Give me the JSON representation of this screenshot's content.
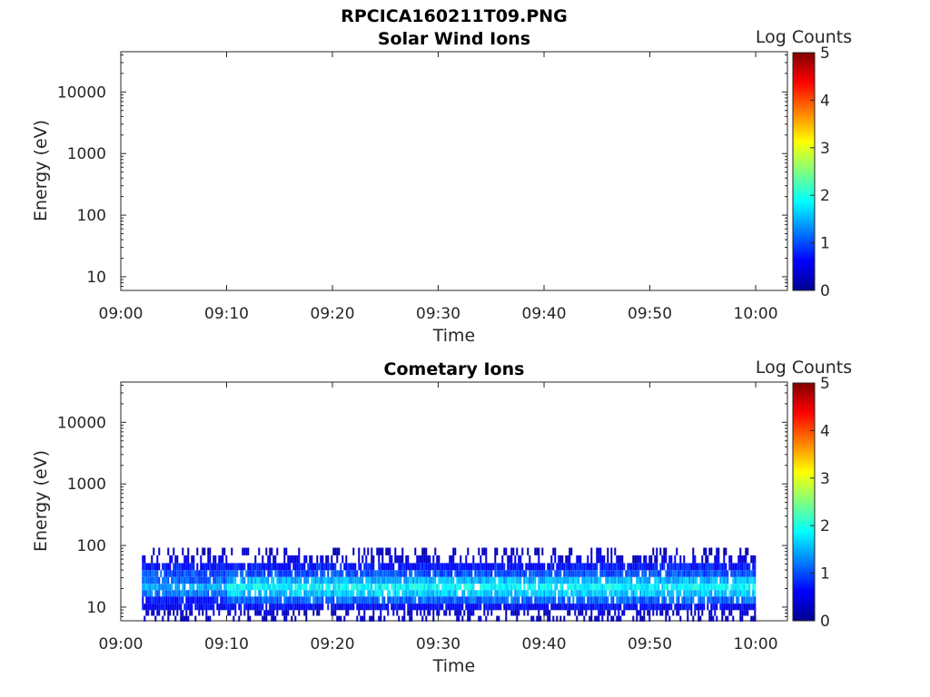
{
  "figure_title": "RPCICA160211T09.PNG",
  "chart_data": [
    {
      "type": "heatmap",
      "title": "Solar Wind Ions",
      "xlabel": "Time",
      "ylabel": "Energy (eV)",
      "xticks": [
        "09:00",
        "09:10",
        "09:20",
        "09:30",
        "09:40",
        "09:50",
        "10:00"
      ],
      "yticks": [
        "10",
        "100",
        "1000",
        "10000"
      ],
      "yscale": "log",
      "colorbar": {
        "label": "Log Counts",
        "ticks": [
          "0",
          "1",
          "2",
          "3",
          "4",
          "5"
        ],
        "range": [
          0,
          5
        ],
        "colormap": "jet"
      },
      "data": "no counts"
    },
    {
      "type": "heatmap",
      "title": "Cometary Ions",
      "xlabel": "Time",
      "ylabel": "Energy (eV)",
      "xticks": [
        "09:00",
        "09:10",
        "09:20",
        "09:30",
        "09:40",
        "09:50",
        "10:00"
      ],
      "yticks": [
        "10",
        "100",
        "1000",
        "10000"
      ],
      "yscale": "log",
      "colorbar": {
        "label": "Log Counts",
        "ticks": [
          "0",
          "1",
          "2",
          "3",
          "4",
          "5"
        ],
        "range": [
          0,
          5
        ],
        "colormap": "jet"
      },
      "data": {
        "time_range": [
          "09:02",
          "10:00"
        ],
        "energy_range_eV": [
          6,
          80
        ],
        "band_peak_energy_eV": 20,
        "peak_log_counts": 2,
        "rows": [
          {
            "energy_eV": 80,
            "log_counts": 0.2
          },
          {
            "energy_eV": 60,
            "log_counts": 0.4
          },
          {
            "energy_eV": 45,
            "log_counts": 0.7
          },
          {
            "energy_eV": 35,
            "log_counts": 1.0
          },
          {
            "energy_eV": 27,
            "log_counts": 1.5
          },
          {
            "energy_eV": 21,
            "log_counts": 1.85
          },
          {
            "energy_eV": 17,
            "log_counts": 1.6
          },
          {
            "energy_eV": 13,
            "log_counts": 1.1
          },
          {
            "energy_eV": 10,
            "log_counts": 0.6
          },
          {
            "energy_eV": 8,
            "log_counts": 0.3
          },
          {
            "energy_eV": 6.5,
            "log_counts": 0.15
          }
        ]
      }
    }
  ]
}
